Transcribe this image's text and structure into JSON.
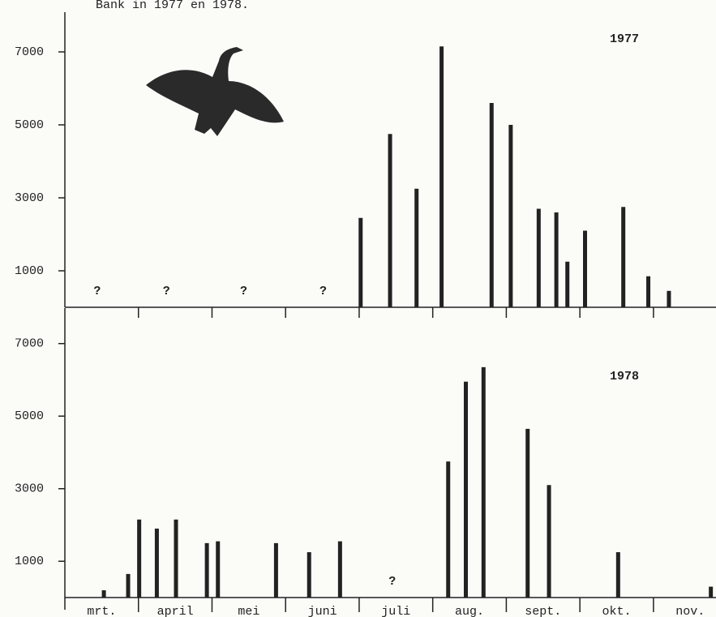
{
  "header": "Bank in 1977 en 1978.",
  "chart_data": [
    {
      "type": "bar",
      "title": "1977",
      "color": "#222222",
      "x": [
        4.02,
        4.42,
        4.78,
        5.12,
        5.8,
        6.06,
        6.44,
        6.68,
        6.83,
        7.07,
        7.59,
        7.93,
        8.21
      ],
      "values": [
        2450,
        4750,
        3250,
        7150,
        5600,
        5000,
        2700,
        2600,
        1250,
        2100,
        2750,
        850,
        450
      ],
      "annotations": [
        {
          "text": "?",
          "x": 0.44
        },
        {
          "text": "?",
          "x": 1.38
        },
        {
          "text": "?",
          "x": 2.43
        },
        {
          "text": "?",
          "x": 3.51
        }
      ],
      "xlim": [
        0,
        8.85
      ],
      "xticks": [
        1,
        2,
        3,
        4,
        5,
        6,
        7,
        8
      ],
      "ylim": [
        0,
        8000
      ],
      "yticks": [
        1000,
        3000,
        5000,
        7000
      ]
    },
    {
      "type": "bar",
      "title": "1978",
      "color": "#222222",
      "categories": [
        "mrt.",
        "april",
        "mei",
        "juni",
        "juli",
        "aug.",
        "sept.",
        "okt.",
        "nov."
      ],
      "x": [
        0.53,
        0.86,
        1.01,
        1.25,
        1.51,
        1.93,
        2.08,
        2.87,
        3.32,
        3.74,
        5.21,
        5.45,
        5.69,
        6.29,
        6.58,
        7.52,
        8.78
      ],
      "values": [
        200,
        650,
        2150,
        1900,
        2150,
        1500,
        1550,
        1500,
        1250,
        1550,
        3750,
        5950,
        6350,
        4650,
        3100,
        1250,
        300
      ],
      "annotations": [
        {
          "text": "?",
          "x": 4.45
        }
      ],
      "xlim": [
        0,
        8.85
      ],
      "xticks": [
        1,
        2,
        3,
        4,
        5,
        6,
        7,
        8
      ],
      "ylim": [
        0,
        8000
      ],
      "yticks": [
        1000,
        3000,
        5000,
        7000
      ]
    }
  ]
}
